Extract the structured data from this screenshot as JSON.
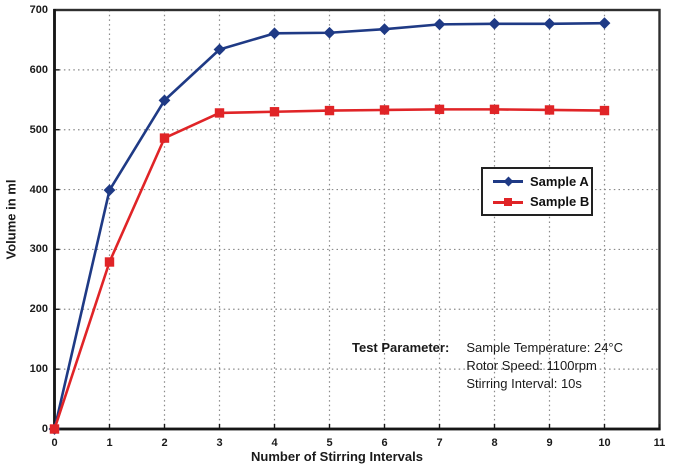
{
  "chart_data": {
    "type": "line",
    "title": "",
    "xlabel": "Number of Stirring Intervals",
    "ylabel": "Volume in ml",
    "xlim": [
      0,
      11
    ],
    "ylim": [
      0,
      700
    ],
    "xticks": [
      0,
      1,
      2,
      3,
      4,
      5,
      6,
      7,
      8,
      9,
      10,
      11
    ],
    "yticks": [
      0,
      100,
      200,
      300,
      400,
      500,
      600,
      700
    ],
    "grid": "dotted",
    "legend_position": "middle-right-inside",
    "x": [
      0,
      1,
      2,
      3,
      4,
      5,
      6,
      7,
      8,
      9,
      10
    ],
    "series": [
      {
        "name": "Sample A",
        "marker": "diamond",
        "color": "#1f3a85",
        "values": [
          0,
          399,
          549,
          634,
          661,
          662,
          668,
          676,
          677,
          677,
          678
        ]
      },
      {
        "name": "Sample B",
        "marker": "square",
        "color": "#e02427",
        "values": [
          0,
          279,
          486,
          528,
          530,
          532,
          533,
          534,
          534,
          533,
          532
        ]
      }
    ]
  },
  "annotation": {
    "label": "Test Parameter:",
    "lines": [
      "Sample Temperature: 24°C",
      "Rotor Speed: 1100rpm",
      "Stirring Interval: 10s"
    ]
  },
  "colors": {
    "grid": "#8a8a8a",
    "frame": "#2f2f2f",
    "axis": "#161616",
    "text": "#1a1a1a",
    "background": "#ffffff"
  }
}
